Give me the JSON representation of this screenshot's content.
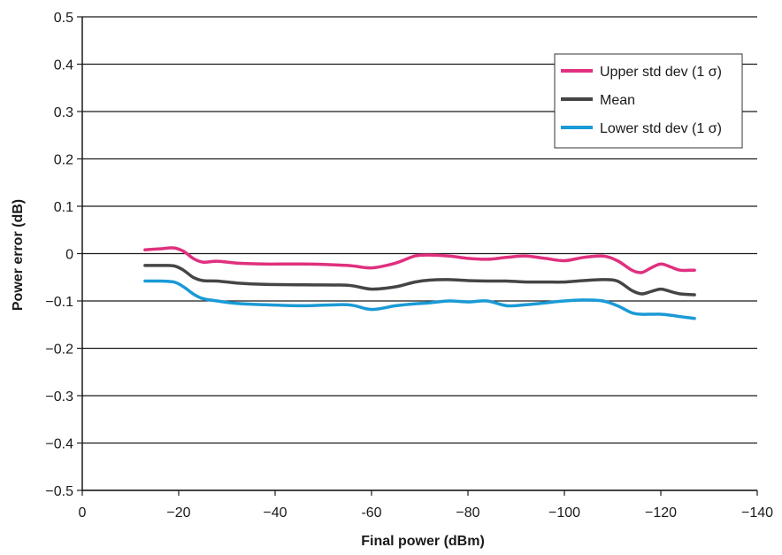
{
  "chart_data": {
    "type": "line",
    "xlabel": "Final power (dBm)",
    "ylabel": "Power error (dB)",
    "xlim": [
      0,
      -140
    ],
    "ylim": [
      -0.5,
      0.5
    ],
    "x_ticks": [
      0,
      -20,
      -40,
      -60,
      -80,
      -100,
      -120,
      -140
    ],
    "x_tick_labels": [
      "0",
      "−20",
      "−40",
      "-60",
      "−80",
      "−100",
      "−120",
      "−140"
    ],
    "y_ticks": [
      0.5,
      0.4,
      0.3,
      0.2,
      0.1,
      0,
      -0.1,
      -0.2,
      -0.3,
      -0.4,
      -0.5
    ],
    "y_tick_labels": [
      "0.5",
      "0.4",
      "0.3",
      "0.2",
      "0.1",
      "0",
      "−0.1",
      "−0.2",
      "−0.3",
      "−0.4",
      "−0.5"
    ],
    "grid": "horizontal",
    "legend_position": "top-right",
    "series": [
      {
        "name": "Upper std dev (1 σ)",
        "color": "#e0307f",
        "x": [
          -13,
          -16,
          -19,
          -21,
          -23,
          -25,
          -28,
          -32,
          -38,
          -46,
          -55,
          -60,
          -65,
          -69,
          -72,
          -76,
          -80,
          -84,
          -88,
          -92,
          -96,
          -100,
          -104,
          -108,
          -111,
          -114,
          -116,
          -118,
          -120,
          -122,
          -124,
          -127
        ],
        "y": [
          0.008,
          0.01,
          0.012,
          0.005,
          -0.01,
          -0.018,
          -0.016,
          -0.02,
          -0.022,
          -0.022,
          -0.025,
          -0.03,
          -0.02,
          -0.005,
          -0.003,
          -0.005,
          -0.01,
          -0.012,
          -0.008,
          -0.005,
          -0.01,
          -0.015,
          -0.008,
          -0.005,
          -0.015,
          -0.035,
          -0.04,
          -0.03,
          -0.022,
          -0.028,
          -0.035,
          -0.035
        ]
      },
      {
        "name": "Mean",
        "color": "#454545",
        "x": [
          -13,
          -16,
          -19,
          -21,
          -23,
          -25,
          -28,
          -32,
          -38,
          -46,
          -55,
          -60,
          -65,
          -69,
          -72,
          -76,
          -80,
          -84,
          -88,
          -92,
          -96,
          -100,
          -104,
          -108,
          -111,
          -114,
          -116,
          -118,
          -120,
          -122,
          -124,
          -127
        ],
        "y": [
          -0.025,
          -0.025,
          -0.026,
          -0.035,
          -0.05,
          -0.057,
          -0.058,
          -0.062,
          -0.065,
          -0.066,
          -0.067,
          -0.075,
          -0.07,
          -0.06,
          -0.056,
          -0.055,
          -0.057,
          -0.058,
          -0.058,
          -0.06,
          -0.06,
          -0.06,
          -0.057,
          -0.055,
          -0.058,
          -0.078,
          -0.085,
          -0.08,
          -0.075,
          -0.08,
          -0.085,
          -0.087
        ]
      },
      {
        "name": "Lower std dev (1 σ)",
        "color": "#1a9ad6",
        "x": [
          -13,
          -16,
          -19,
          -21,
          -23,
          -25,
          -28,
          -32,
          -38,
          -46,
          -55,
          -60,
          -65,
          -69,
          -72,
          -76,
          -80,
          -84,
          -88,
          -92,
          -96,
          -100,
          -104,
          -108,
          -111,
          -114,
          -116,
          -118,
          -120,
          -122,
          -124,
          -127
        ],
        "y": [
          -0.058,
          -0.058,
          -0.06,
          -0.07,
          -0.085,
          -0.095,
          -0.1,
          -0.105,
          -0.108,
          -0.11,
          -0.108,
          -0.118,
          -0.11,
          -0.106,
          -0.104,
          -0.1,
          -0.102,
          -0.1,
          -0.11,
          -0.108,
          -0.104,
          -0.1,
          -0.098,
          -0.1,
          -0.11,
          -0.125,
          -0.128,
          -0.128,
          -0.128,
          -0.13,
          -0.133,
          -0.137
        ]
      }
    ]
  }
}
